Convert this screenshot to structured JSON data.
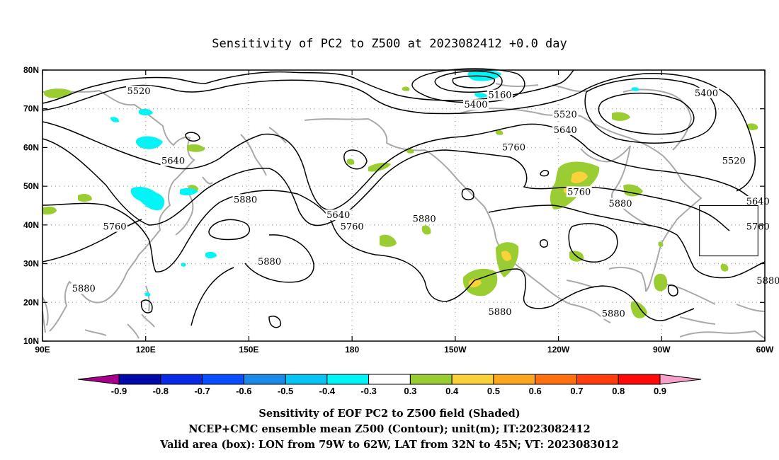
{
  "title": "Sensitivity of PC2 to Z500 at 2023082412 +0.0 day",
  "axes": {
    "x_ticks": [
      "90E",
      "120E",
      "150E",
      "180",
      "150W",
      "120W",
      "90W",
      "60W"
    ],
    "y_ticks": [
      "10N",
      "20N",
      "30N",
      "40N",
      "50N",
      "60N",
      "70N",
      "80N"
    ],
    "lon_range_east": [
      90,
      300
    ],
    "lat_range": [
      10,
      80
    ],
    "grid": "dotted"
  },
  "contour_labels": [
    {
      "text": "5520",
      "lon": 118,
      "lat": 74.5
    },
    {
      "text": "5160",
      "lon": 223,
      "lat": 73.5
    },
    {
      "text": "5400",
      "lon": 216,
      "lat": 71
    },
    {
      "text": "5520",
      "lon": 242,
      "lat": 68.5
    },
    {
      "text": "5640",
      "lon": 242,
      "lat": 64.5
    },
    {
      "text": "5760",
      "lon": 227,
      "lat": 60
    },
    {
      "text": "5400",
      "lon": 283,
      "lat": 74
    },
    {
      "text": "5520",
      "lon": 291,
      "lat": 56.5
    },
    {
      "text": "5640",
      "lon": 128,
      "lat": 56.5
    },
    {
      "text": "5880",
      "lon": 149,
      "lat": 46.5
    },
    {
      "text": "5760",
      "lon": 111,
      "lat": 39.5
    },
    {
      "text": "5640",
      "lon": 176,
      "lat": 42.5
    },
    {
      "text": "5760",
      "lon": 180,
      "lat": 39.5
    },
    {
      "text": "5880",
      "lon": 201,
      "lat": 41.5
    },
    {
      "text": "5760",
      "lon": 246,
      "lat": 48.5
    },
    {
      "text": "5880",
      "lon": 258,
      "lat": 45.5
    },
    {
      "text": "5640",
      "lon": 298,
      "lat": 46
    },
    {
      "text": "5760",
      "lon": 298,
      "lat": 39.5
    },
    {
      "text": "5880",
      "lon": 156,
      "lat": 30.5
    },
    {
      "text": "5880",
      "lon": 102,
      "lat": 23.5
    },
    {
      "text": "5880",
      "lon": 223,
      "lat": 17.5
    },
    {
      "text": "5880",
      "lon": 256,
      "lat": 17
    },
    {
      "text": "5880",
      "lon": 301,
      "lat": 25.5
    }
  ],
  "valid_box": {
    "lon_w": 79,
    "lon_e": 62,
    "lat_s": 32,
    "lat_n": 45
  },
  "colorbar": {
    "labels": [
      "-0.9",
      "-0.8",
      "-0.7",
      "-0.6",
      "-0.5",
      "-0.4",
      "-0.3",
      "0.3",
      "0.4",
      "0.5",
      "0.6",
      "0.7",
      "0.8",
      "0.9"
    ],
    "colors": [
      "#a8008c",
      "#000aa8",
      "#0a2ae6",
      "#0a4eff",
      "#1a8ae8",
      "#08c4f4",
      "#00f6f6",
      "#ffffff",
      "#9acd32",
      "#fcd23a",
      "#fca81e",
      "#ff7010",
      "#ff3e10",
      "#ff0a0a",
      "#f7a0c8"
    ]
  },
  "captions": [
    "Sensitivity of EOF PC2 to Z500 field (Shaded)",
    "NCEP+CMC ensemble mean Z500 (Contour); unit(m); IT:2023082412",
    "Valid area (box): LON from 79W to 62W, LAT from 32N to 45N; VT: 2023083012"
  ]
}
